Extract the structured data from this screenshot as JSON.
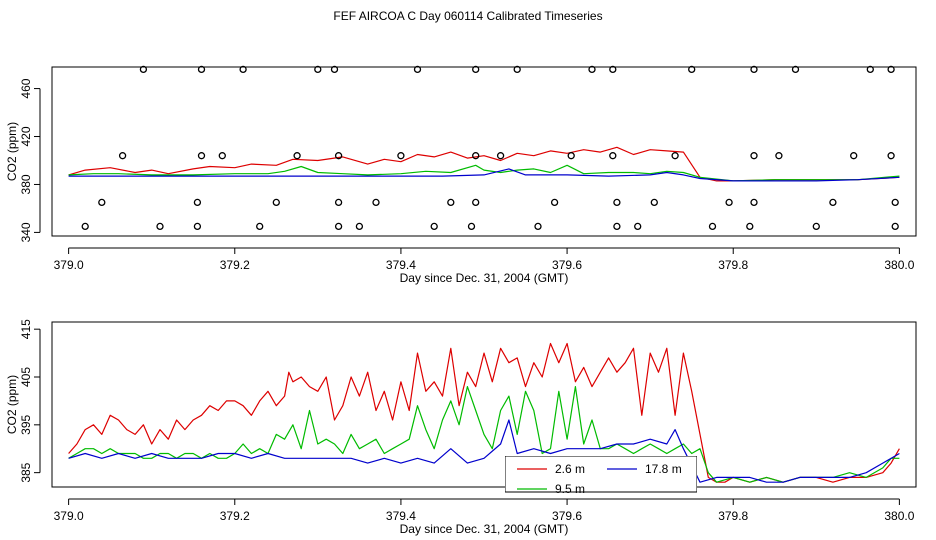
{
  "title": "FEF AIRCOA C  Day 060114  Calibrated Timeseries",
  "colors": {
    "s_2_6m": "#dd0000",
    "s_9_5m": "#00bb00",
    "s_17_8m": "#0000cc"
  },
  "chart_data": [
    {
      "type": "line",
      "title": "FEF AIRCOA C  Day 060114  Calibrated Timeseries",
      "xlabel": "Day since Dec. 31, 2004 (GMT)",
      "ylabel": "CO2 (ppm)",
      "xlim": [
        378.98,
        380.02
      ],
      "ylim": [
        337,
        478
      ],
      "x_ticks": [
        "379.0",
        "379.2",
        "379.4",
        "379.6",
        "379.8",
        "380.0"
      ],
      "y_ticks": [
        "340",
        "380",
        "420",
        "460"
      ],
      "series": [
        {
          "name": "2.6 m",
          "color": "#dd0000",
          "x": [
            379.0,
            379.02,
            379.05,
            379.08,
            379.1,
            379.12,
            379.15,
            379.17,
            379.2,
            379.22,
            379.25,
            379.27,
            379.3,
            379.33,
            379.36,
            379.38,
            379.4,
            379.42,
            379.44,
            379.46,
            379.48,
            379.5,
            379.52,
            379.54,
            379.56,
            379.58,
            379.6,
            379.62,
            379.64,
            379.66,
            379.68,
            379.7,
            379.72,
            379.74,
            379.76,
            379.78,
            379.8,
            379.85,
            379.9,
            379.95,
            380.0
          ],
          "values": [
            388,
            392,
            394,
            390,
            392,
            389,
            393,
            395,
            394,
            397,
            396,
            401,
            400,
            403,
            397,
            401,
            399,
            405,
            403,
            407,
            402,
            404,
            400,
            406,
            404,
            408,
            406,
            409,
            407,
            411,
            405,
            409,
            408,
            407,
            386,
            383,
            383,
            384,
            384,
            384,
            386
          ]
        },
        {
          "name": "9.5 m",
          "color": "#00bb00",
          "x": [
            379.0,
            379.03,
            379.06,
            379.1,
            379.15,
            379.2,
            379.24,
            379.26,
            379.28,
            379.3,
            379.33,
            379.36,
            379.4,
            379.43,
            379.46,
            379.49,
            379.5,
            379.52,
            379.54,
            379.56,
            379.58,
            379.6,
            379.62,
            379.65,
            379.68,
            379.7,
            379.72,
            379.74,
            379.76,
            379.8,
            379.85,
            379.9,
            379.95,
            380.0
          ],
          "values": [
            388,
            389,
            389,
            388,
            388,
            389,
            389,
            391,
            395,
            390,
            389,
            388,
            389,
            391,
            390,
            396,
            392,
            390,
            392,
            393,
            390,
            396,
            389,
            390,
            390,
            389,
            391,
            390,
            386,
            383,
            384,
            384,
            384,
            387
          ]
        },
        {
          "name": "17.8 m",
          "color": "#0000cc",
          "x": [
            379.0,
            379.1,
            379.2,
            379.3,
            379.4,
            379.45,
            379.5,
            379.53,
            379.55,
            379.6,
            379.65,
            379.7,
            379.72,
            379.74,
            379.76,
            379.8,
            379.85,
            379.9,
            379.95,
            380.0
          ],
          "values": [
            387,
            387,
            387,
            387,
            387,
            387,
            388,
            393,
            388,
            388,
            387,
            388,
            390,
            388,
            385,
            383,
            383,
            383,
            384,
            386
          ]
        }
      ],
      "scatter_markers": {
        "name": "calibration points",
        "x": [
          379.09,
          379.16,
          379.21,
          379.3,
          379.32,
          379.42,
          379.49,
          379.54,
          379.63,
          379.655,
          379.75,
          379.825,
          379.875,
          379.965,
          379.99,
          379.065,
          379.16,
          379.185,
          379.275,
          379.325,
          379.4,
          379.49,
          379.52,
          379.605,
          379.655,
          379.73,
          379.825,
          379.855,
          379.945,
          379.99,
          379.04,
          379.155,
          379.25,
          379.325,
          379.37,
          379.46,
          379.49,
          379.585,
          379.66,
          379.705,
          379.795,
          379.825,
          379.92,
          379.995,
          379.02,
          379.11,
          379.155,
          379.23,
          379.325,
          379.35,
          379.44,
          379.485,
          379.565,
          379.66,
          379.685,
          379.775,
          379.82,
          379.9,
          379.995
        ],
        "values": [
          476,
          476,
          476,
          476,
          476,
          476,
          476,
          476,
          476,
          476,
          476,
          476,
          476,
          476,
          476,
          404,
          404,
          404,
          404,
          404,
          404,
          404,
          404,
          404,
          404,
          404,
          404,
          404,
          404,
          404,
          365,
          365,
          365,
          365,
          365,
          365,
          365,
          365,
          365,
          365,
          365,
          365,
          365,
          365,
          345,
          345,
          345,
          345,
          345,
          345,
          345,
          345,
          345,
          345,
          345,
          345,
          345,
          345,
          345
        ]
      }
    },
    {
      "type": "line",
      "title": "",
      "xlabel": "Day since Dec. 31, 2004 (GMT)",
      "ylabel": "CO2 (ppm)",
      "xlim": [
        378.98,
        380.02
      ],
      "ylim": [
        382,
        416.5
      ],
      "x_ticks": [
        "379.0",
        "379.2",
        "379.4",
        "379.6",
        "379.8",
        "380.0"
      ],
      "y_ticks": [
        "385",
        "395",
        "405",
        "415"
      ],
      "legend": {
        "position": "bottom-center",
        "entries": [
          "2.6 m",
          "9.5 m",
          "17.8 m"
        ]
      },
      "series": [
        {
          "name": "2.6 m",
          "color": "#dd0000",
          "x": [
            379.0,
            379.01,
            379.02,
            379.03,
            379.04,
            379.05,
            379.06,
            379.07,
            379.08,
            379.09,
            379.1,
            379.11,
            379.12,
            379.13,
            379.14,
            379.15,
            379.16,
            379.17,
            379.18,
            379.19,
            379.2,
            379.21,
            379.22,
            379.23,
            379.24,
            379.25,
            379.26,
            379.265,
            379.27,
            379.28,
            379.29,
            379.3,
            379.31,
            379.32,
            379.33,
            379.34,
            379.35,
            379.36,
            379.37,
            379.38,
            379.39,
            379.4,
            379.41,
            379.42,
            379.43,
            379.44,
            379.45,
            379.46,
            379.47,
            379.48,
            379.49,
            379.5,
            379.51,
            379.52,
            379.53,
            379.54,
            379.55,
            379.56,
            379.57,
            379.58,
            379.59,
            379.6,
            379.61,
            379.62,
            379.63,
            379.64,
            379.65,
            379.66,
            379.67,
            379.68,
            379.69,
            379.7,
            379.71,
            379.72,
            379.73,
            379.74,
            379.75,
            379.76,
            379.77,
            379.78,
            379.79,
            379.8,
            379.82,
            379.84,
            379.86,
            379.88,
            379.9,
            379.92,
            379.94,
            379.96,
            379.98,
            379.99,
            380.0
          ],
          "values": [
            389,
            391,
            394,
            395,
            393,
            397,
            396,
            394,
            393,
            395,
            391,
            394,
            392,
            396,
            394,
            396,
            397,
            399,
            398,
            400,
            400,
            399,
            397,
            400,
            402,
            399,
            401,
            406,
            404,
            405,
            403,
            402,
            405,
            396,
            399,
            405,
            401,
            406,
            398,
            402,
            396,
            404,
            398,
            410,
            402,
            404,
            401,
            411,
            399,
            406,
            403,
            410,
            404,
            411,
            408,
            409,
            403,
            408,
            405,
            412,
            408,
            412,
            404,
            407,
            403,
            406,
            409,
            406,
            408,
            411,
            397,
            410,
            406,
            411,
            397,
            410,
            402,
            393,
            384,
            383,
            383,
            384,
            383,
            384,
            383,
            384,
            384,
            383,
            384,
            384,
            385,
            387,
            390
          ]
        },
        {
          "name": "9.5 m",
          "color": "#00bb00",
          "x": [
            379.0,
            379.01,
            379.02,
            379.03,
            379.04,
            379.05,
            379.06,
            379.07,
            379.08,
            379.09,
            379.1,
            379.11,
            379.12,
            379.13,
            379.14,
            379.15,
            379.16,
            379.17,
            379.18,
            379.19,
            379.2,
            379.21,
            379.22,
            379.23,
            379.24,
            379.25,
            379.26,
            379.27,
            379.28,
            379.29,
            379.3,
            379.31,
            379.32,
            379.33,
            379.34,
            379.35,
            379.36,
            379.37,
            379.38,
            379.39,
            379.4,
            379.41,
            379.42,
            379.43,
            379.44,
            379.45,
            379.46,
            379.47,
            379.48,
            379.49,
            379.5,
            379.51,
            379.52,
            379.53,
            379.54,
            379.55,
            379.56,
            379.57,
            379.58,
            379.59,
            379.6,
            379.61,
            379.62,
            379.63,
            379.64,
            379.65,
            379.66,
            379.67,
            379.68,
            379.69,
            379.7,
            379.71,
            379.72,
            379.73,
            379.74,
            379.75,
            379.76,
            379.77,
            379.78,
            379.8,
            379.82,
            379.84,
            379.86,
            379.88,
            379.9,
            379.92,
            379.94,
            379.96,
            379.98,
            379.99,
            380.0
          ],
          "values": [
            388,
            389,
            390,
            390,
            389,
            390,
            389,
            389,
            389,
            388,
            388,
            389,
            389,
            388,
            389,
            389,
            388,
            389,
            388,
            388,
            389,
            391,
            389,
            390,
            389,
            393,
            392,
            395,
            390,
            398,
            391,
            392,
            391,
            389,
            393,
            390,
            391,
            392,
            389,
            390,
            391,
            392,
            399,
            394,
            390,
            396,
            400,
            395,
            403,
            398,
            393,
            390,
            398,
            401,
            393,
            402,
            398,
            389,
            390,
            402,
            392,
            403,
            391,
            396,
            390,
            390,
            391,
            390,
            389,
            390,
            391,
            390,
            389,
            390,
            391,
            389,
            390,
            385,
            383,
            384,
            383,
            384,
            383,
            384,
            384,
            384,
            385,
            384,
            386,
            388,
            388
          ]
        },
        {
          "name": "17.8 m",
          "color": "#0000cc",
          "x": [
            379.0,
            379.02,
            379.04,
            379.06,
            379.08,
            379.1,
            379.12,
            379.14,
            379.16,
            379.18,
            379.2,
            379.22,
            379.24,
            379.26,
            379.28,
            379.3,
            379.32,
            379.34,
            379.36,
            379.38,
            379.4,
            379.42,
            379.44,
            379.46,
            379.48,
            379.5,
            379.52,
            379.53,
            379.54,
            379.56,
            379.58,
            379.6,
            379.62,
            379.64,
            379.66,
            379.68,
            379.7,
            379.72,
            379.73,
            379.74,
            379.76,
            379.78,
            379.8,
            379.82,
            379.84,
            379.86,
            379.88,
            379.9,
            379.92,
            379.94,
            379.96,
            379.98,
            380.0
          ],
          "values": [
            388,
            389,
            388,
            389,
            388,
            389,
            388,
            388,
            388,
            389,
            389,
            388,
            389,
            388,
            388,
            388,
            388,
            388,
            387,
            388,
            387,
            388,
            387,
            390,
            387,
            388,
            391,
            396,
            389,
            390,
            389,
            390,
            390,
            390,
            391,
            391,
            392,
            391,
            394,
            390,
            383,
            384,
            384,
            384,
            383,
            383,
            384,
            384,
            384,
            384,
            385,
            387,
            389
          ]
        }
      ]
    }
  ]
}
